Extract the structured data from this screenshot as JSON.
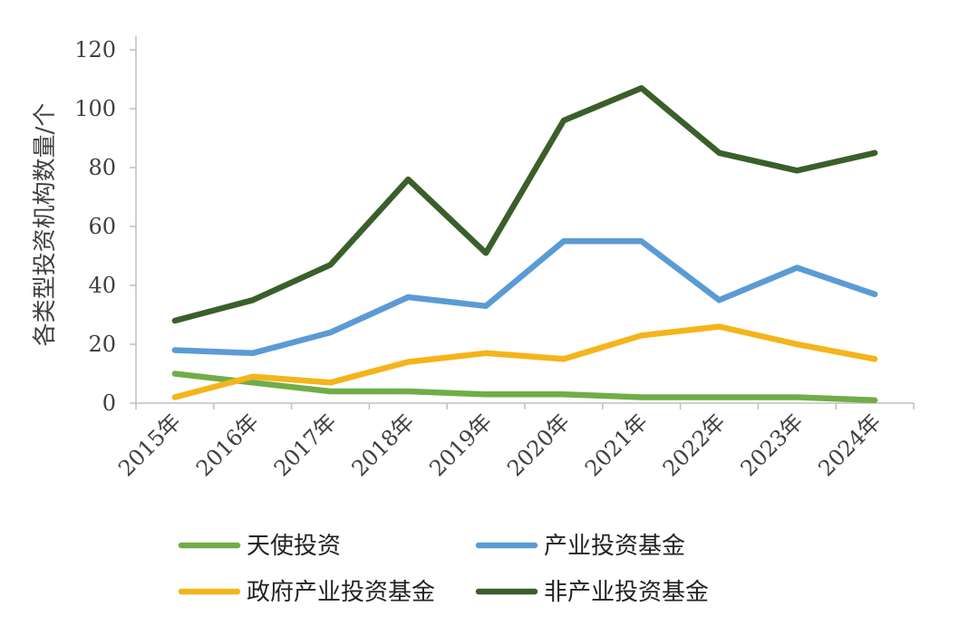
{
  "chart_data": {
    "type": "line",
    "categories": [
      "2015年",
      "2016年",
      "2017年",
      "2018年",
      "2019年",
      "2020年",
      "2021年",
      "2022年",
      "2023年",
      "2024年"
    ],
    "ylabel": "各类型投资机构数量/个",
    "ylim": [
      0,
      120
    ],
    "yticks": [
      0,
      20,
      40,
      60,
      80,
      100,
      120
    ],
    "grid": false,
    "legend_position": "bottom",
    "series": [
      {
        "name": "天使投资",
        "color": "#70ad47",
        "values": [
          10,
          7,
          4,
          4,
          3,
          3,
          2,
          2,
          2,
          1
        ]
      },
      {
        "name": "产业投资基金",
        "color": "#5b9bd5",
        "values": [
          18,
          17,
          24,
          36,
          33,
          55,
          55,
          35,
          46,
          37
        ]
      },
      {
        "name": "政府产业投资基金",
        "color": "#f4b41a",
        "values": [
          2,
          9,
          7,
          14,
          17,
          15,
          23,
          26,
          20,
          15
        ]
      },
      {
        "name": "非产业投资基金",
        "color": "#3a5f2a",
        "values": [
          28,
          35,
          47,
          76,
          51,
          96,
          107,
          85,
          79,
          85
        ]
      }
    ]
  }
}
